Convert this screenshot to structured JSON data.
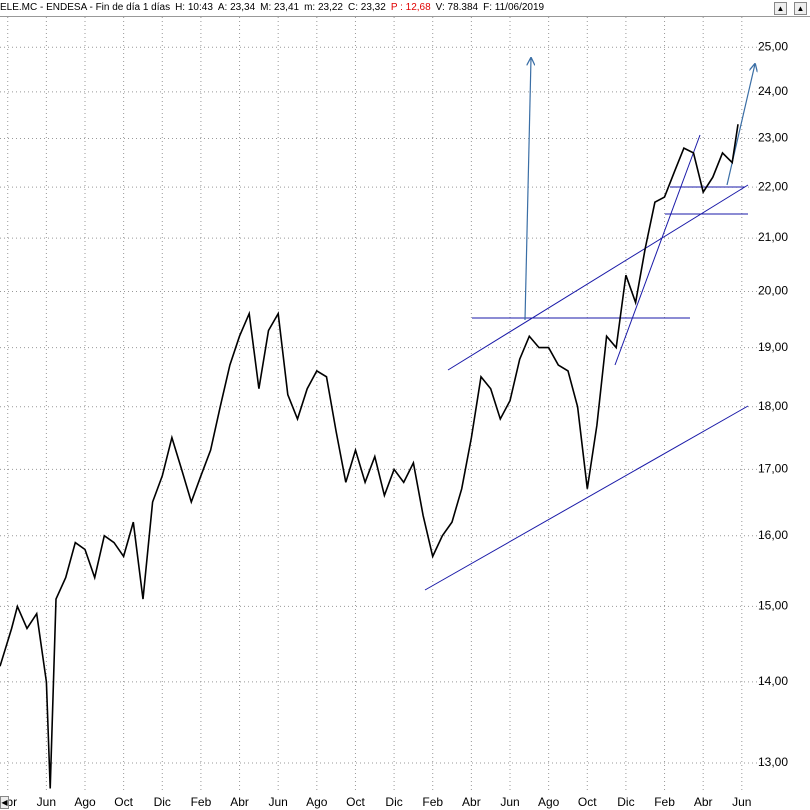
{
  "chart_data": {
    "type": "line",
    "header": [
      "ELE.MC - ENDESA - Fin de día 1 días",
      "H: 10:43",
      "A: 23,34",
      "M: 23,41",
      "m: 23,22",
      "C: 23,32",
      "P : 12,68",
      "V: 78.384",
      "F: 11/06/2019"
    ],
    "log_scale": true,
    "grid": true,
    "x": [
      -0.4,
      0.2,
      0.5,
      1,
      1.5,
      2,
      2.2,
      2.5,
      3,
      3.5,
      4,
      4.5,
      5,
      5.5,
      6,
      6.5,
      7,
      7.5,
      8,
      8.5,
      9,
      9.5,
      10,
      10.5,
      11,
      11.5,
      12,
      12.5,
      13,
      13.5,
      14,
      14.5,
      15,
      15.5,
      16,
      16.5,
      17,
      17.5,
      18,
      18.5,
      19,
      19.5,
      20,
      20.5,
      21,
      21.5,
      22,
      22.5,
      23,
      23.5,
      24,
      24.5,
      25,
      25.5,
      26,
      26.5,
      27,
      27.5,
      28,
      28.5,
      29,
      29.5,
      30,
      30.5,
      31,
      31.5,
      32,
      32.5,
      33,
      33.5,
      34,
      34.5,
      35,
      35.5,
      36,
      36.5,
      37,
      37.5,
      37.8
    ],
    "series": [
      {
        "name": "ELE.MC",
        "color": "#000000",
        "values": [
          14.2,
          14.7,
          15.0,
          14.7,
          14.9,
          14.0,
          12.7,
          15.1,
          15.4,
          15.9,
          15.8,
          15.4,
          16.0,
          15.9,
          15.7,
          16.2,
          15.1,
          16.5,
          16.9,
          17.5,
          17.0,
          16.5,
          16.9,
          17.3,
          18.0,
          18.7,
          19.2,
          19.6,
          18.3,
          19.3,
          19.6,
          18.2,
          17.8,
          18.3,
          18.6,
          18.5,
          17.6,
          16.8,
          17.3,
          16.8,
          17.2,
          16.6,
          17.0,
          16.8,
          17.1,
          16.3,
          15.7,
          16.0,
          16.2,
          16.7,
          17.5,
          18.5,
          18.3,
          17.8,
          18.1,
          18.8,
          19.2,
          19.0,
          19.0,
          18.7,
          18.6,
          18.0,
          16.7,
          17.7,
          19.2,
          19.0,
          20.3,
          19.8,
          20.8,
          21.7,
          21.8,
          22.3,
          22.8,
          22.7,
          21.9,
          22.2,
          22.7,
          22.5,
          23.3
        ]
      }
    ],
    "xlim": [
      -0.4,
      39.2
    ],
    "xticks": [
      {
        "value": 0,
        "label": "Abr"
      },
      {
        "value": 2,
        "label": "Jun"
      },
      {
        "value": 4,
        "label": "Ago"
      },
      {
        "value": 6,
        "label": "Oct"
      },
      {
        "value": 8,
        "label": "Dic"
      },
      {
        "value": 10,
        "label": "Feb"
      },
      {
        "value": 12,
        "label": "Abr"
      },
      {
        "value": 14,
        "label": "Jun"
      },
      {
        "value": 16,
        "label": "Ago"
      },
      {
        "value": 18,
        "label": "Oct"
      },
      {
        "value": 20,
        "label": "Dic"
      },
      {
        "value": 22,
        "label": "Feb"
      },
      {
        "value": 24,
        "label": "Abr"
      },
      {
        "value": 26,
        "label": "Jun"
      },
      {
        "value": 28,
        "label": "Ago"
      },
      {
        "value": 30,
        "label": "Oct"
      },
      {
        "value": 32,
        "label": "Dic"
      },
      {
        "value": 34,
        "label": "Feb"
      },
      {
        "value": 36,
        "label": "Abr"
      },
      {
        "value": 38,
        "label": "Jun"
      }
    ],
    "ylim": [
      12.66,
      25.7
    ],
    "yticks": [
      {
        "value": 13,
        "label": "13,00"
      },
      {
        "value": 14,
        "label": "14,00"
      },
      {
        "value": 15,
        "label": "15,00"
      },
      {
        "value": 16,
        "label": "16,00"
      },
      {
        "value": 17,
        "label": "17,00"
      },
      {
        "value": 18,
        "label": "18,00"
      },
      {
        "value": 19,
        "label": "19,00"
      },
      {
        "value": 20,
        "label": "20,00"
      },
      {
        "value": 21,
        "label": "21,00"
      },
      {
        "value": 22,
        "label": "22,00"
      },
      {
        "value": 23,
        "label": "23,00"
      },
      {
        "value": 24,
        "label": "24,00"
      },
      {
        "value": 25,
        "label": "25,00"
      }
    ]
  }
}
